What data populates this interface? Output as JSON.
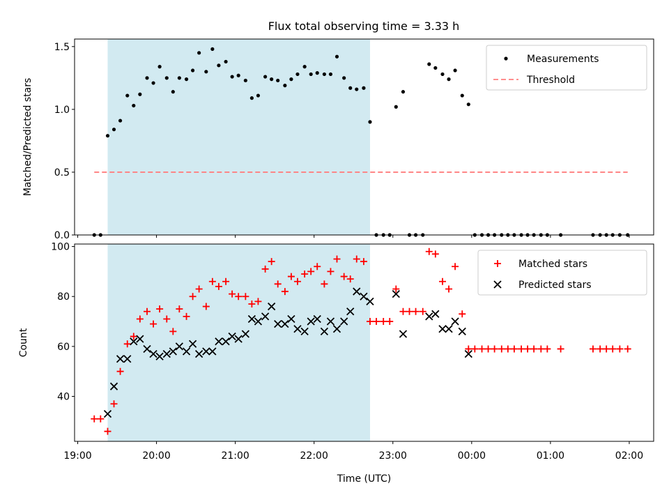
{
  "title": "Flux total observing time = 3.33 h",
  "colors": {
    "shade": "#add8e6",
    "measurement": "#000000",
    "threshold": "#ff7f7f",
    "matched": "#ff0000",
    "predicted": "#000000"
  },
  "chart_data": [
    {
      "type": "scatter",
      "ylabel": "Matched/Predicted stars",
      "xlim": [
        18.96,
        26.31
      ],
      "ylim": [
        0,
        1.56
      ],
      "yticks": [
        0.0,
        0.5,
        1.0,
        1.5
      ],
      "ytick_labels": [
        "0.0",
        "0.5",
        "1.0",
        "1.5"
      ],
      "shaded_interval": [
        19.38,
        22.71
      ],
      "legend": {
        "position": "upper right",
        "entries": [
          "Measurements",
          "Threshold"
        ]
      },
      "threshold": {
        "name": "Threshold",
        "x": [
          19.21,
          25.98
        ],
        "y": 0.5,
        "style": "dashed"
      },
      "series": [
        {
          "name": "Measurements",
          "marker": "dot",
          "x": [
            19.21,
            19.29,
            19.38,
            19.46,
            19.54,
            19.63,
            19.71,
            19.79,
            19.88,
            19.96,
            20.04,
            20.13,
            20.21,
            20.29,
            20.38,
            20.46,
            20.54,
            20.63,
            20.71,
            20.79,
            20.88,
            20.96,
            21.04,
            21.13,
            21.21,
            21.29,
            21.38,
            21.46,
            21.54,
            21.63,
            21.71,
            21.79,
            21.88,
            21.96,
            22.04,
            22.13,
            22.21,
            22.29,
            22.38,
            22.46,
            22.54,
            22.63,
            22.71,
            22.79,
            22.88,
            22.96,
            23.04,
            23.13,
            23.21,
            23.29,
            23.38,
            23.46,
            23.54,
            23.63,
            23.71,
            23.79,
            23.88,
            23.96,
            24.04,
            24.13,
            24.21,
            24.29,
            24.38,
            24.46,
            24.54,
            24.63,
            24.71,
            24.79,
            24.88,
            24.96,
            25.13,
            25.54,
            25.63,
            25.71,
            25.79,
            25.88,
            25.98
          ],
          "y": [
            0.0,
            0.0,
            0.79,
            0.84,
            0.91,
            1.11,
            1.03,
            1.12,
            1.25,
            1.21,
            1.34,
            1.25,
            1.14,
            1.25,
            1.24,
            1.31,
            1.45,
            1.3,
            1.48,
            1.35,
            1.38,
            1.26,
            1.27,
            1.23,
            1.09,
            1.11,
            1.26,
            1.24,
            1.23,
            1.19,
            1.24,
            1.28,
            1.34,
            1.28,
            1.29,
            1.28,
            1.28,
            1.42,
            1.25,
            1.17,
            1.16,
            1.17,
            0.9,
            0.0,
            0.0,
            0.0,
            1.02,
            1.14,
            0.0,
            0.0,
            0.0,
            1.36,
            1.33,
            1.28,
            1.24,
            1.31,
            1.11,
            1.04,
            0.0,
            0.0,
            0.0,
            0.0,
            0.0,
            0.0,
            0.0,
            0.0,
            0.0,
            0.0,
            0.0,
            0.0,
            0.0,
            0.0,
            0.0,
            0.0,
            0.0,
            0.0,
            0.0
          ]
        }
      ]
    },
    {
      "type": "scatter",
      "ylabel": "Count",
      "xlabel": "Time (UTC)",
      "xlim": [
        18.96,
        26.31
      ],
      "ylim": [
        22,
        101
      ],
      "yticks": [
        40,
        60,
        80,
        100
      ],
      "ytick_labels": [
        "40",
        "60",
        "80",
        "100"
      ],
      "xticks": [
        19,
        20,
        21,
        22,
        23,
        24,
        25,
        26
      ],
      "xtick_labels": [
        "19:00",
        "20:00",
        "21:00",
        "22:00",
        "23:00",
        "00:00",
        "01:00",
        "02:00"
      ],
      "shaded_interval": [
        19.38,
        22.71
      ],
      "legend": {
        "position": "upper right",
        "entries": [
          "Matched stars",
          "Predicted stars"
        ]
      },
      "series": [
        {
          "name": "Matched stars",
          "marker": "plus",
          "x": [
            19.21,
            19.29,
            19.38,
            19.46,
            19.54,
            19.63,
            19.71,
            19.79,
            19.88,
            19.96,
            20.04,
            20.13,
            20.21,
            20.29,
            20.38,
            20.46,
            20.54,
            20.63,
            20.71,
            20.79,
            20.88,
            20.96,
            21.04,
            21.13,
            21.21,
            21.29,
            21.38,
            21.46,
            21.54,
            21.63,
            21.71,
            21.79,
            21.88,
            21.96,
            22.04,
            22.13,
            22.21,
            22.29,
            22.38,
            22.46,
            22.54,
            22.63,
            22.71,
            22.79,
            22.88,
            22.96,
            23.04,
            23.13,
            23.21,
            23.29,
            23.38,
            23.46,
            23.54,
            23.63,
            23.71,
            23.79,
            23.88,
            23.96,
            24.04,
            24.13,
            24.21,
            24.29,
            24.38,
            24.46,
            24.54,
            24.63,
            24.71,
            24.79,
            24.88,
            24.96,
            25.13,
            25.54,
            25.63,
            25.71,
            25.79,
            25.88,
            25.98
          ],
          "y": [
            31,
            31,
            26,
            37,
            50,
            61,
            64,
            71,
            74,
            69,
            75,
            71,
            66,
            75,
            72,
            80,
            83,
            76,
            86,
            84,
            86,
            81,
            80,
            80,
            77,
            78,
            91,
            94,
            85,
            82,
            88,
            86,
            89,
            90,
            92,
            85,
            90,
            95,
            88,
            87,
            95,
            94,
            70,
            70,
            70,
            70,
            83,
            74,
            74,
            74,
            74,
            98,
            97,
            86,
            83,
            92,
            73,
            59,
            59,
            59,
            59,
            59,
            59,
            59,
            59,
            59,
            59,
            59,
            59,
            59,
            59,
            59,
            59,
            59,
            59,
            59,
            59
          ]
        },
        {
          "name": "Predicted stars",
          "marker": "cross",
          "x": [
            19.38,
            19.46,
            19.54,
            19.63,
            19.71,
            19.79,
            19.88,
            19.96,
            20.04,
            20.13,
            20.21,
            20.29,
            20.38,
            20.46,
            20.54,
            20.63,
            20.71,
            20.79,
            20.88,
            20.96,
            21.04,
            21.13,
            21.21,
            21.29,
            21.38,
            21.46,
            21.54,
            21.63,
            21.71,
            21.79,
            21.88,
            21.96,
            22.04,
            22.13,
            22.21,
            22.29,
            22.38,
            22.46,
            22.54,
            22.63,
            22.71,
            23.04,
            23.13,
            23.46,
            23.54,
            23.63,
            23.71,
            23.79,
            23.88,
            23.96
          ],
          "y": [
            33,
            44,
            55,
            55,
            62,
            63,
            59,
            57,
            56,
            57,
            58,
            60,
            58,
            61,
            57,
            58,
            58,
            62,
            62,
            64,
            63,
            65,
            71,
            70,
            72,
            76,
            69,
            69,
            71,
            67,
            66,
            70,
            71,
            66,
            70,
            67,
            70,
            74,
            82,
            80,
            78,
            81,
            65,
            72,
            73,
            67,
            67,
            70,
            66,
            57
          ]
        }
      ]
    }
  ]
}
